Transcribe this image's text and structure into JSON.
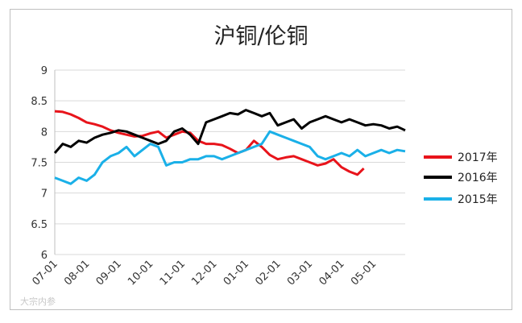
{
  "chart_data": {
    "type": "line",
    "title": "沪铜/伦铜",
    "xlabel": "",
    "ylabel": "",
    "ylim": [
      6,
      9
    ],
    "yticks": [
      "9",
      "8.5",
      "8",
      "7.5",
      "7",
      "6.5",
      "6"
    ],
    "xticks": [
      "07-01",
      "08-01",
      "09-01",
      "10-01",
      "11-01",
      "12-01",
      "01-01",
      "02-01",
      "03-01",
      "04-01",
      "05-01"
    ],
    "x_range_months": [
      0,
      11
    ],
    "grid": "horizontal",
    "legend_position": "right",
    "series": [
      {
        "name": "2017年",
        "color": "#e8141b",
        "x": [
          0.0,
          0.25,
          0.5,
          0.75,
          1.0,
          1.25,
          1.5,
          1.75,
          2.0,
          2.25,
          2.5,
          2.75,
          3.0,
          3.25,
          3.5,
          3.75,
          4.0,
          4.25,
          4.5,
          4.75,
          5.0,
          5.25,
          5.5,
          5.75,
          6.0,
          6.25,
          6.5,
          6.75,
          7.0,
          7.25,
          7.5,
          7.75,
          8.0,
          8.25,
          8.5,
          8.75,
          9.0,
          9.25,
          9.5,
          9.7
        ],
        "y": [
          8.33,
          8.32,
          8.28,
          8.22,
          8.15,
          8.12,
          8.08,
          8.02,
          7.98,
          7.95,
          7.92,
          7.93,
          7.97,
          8.0,
          7.9,
          7.95,
          8.0,
          7.98,
          7.85,
          7.8,
          7.8,
          7.78,
          7.72,
          7.65,
          7.7,
          7.85,
          7.75,
          7.62,
          7.55,
          7.58,
          7.6,
          7.55,
          7.5,
          7.45,
          7.48,
          7.55,
          7.42,
          7.35,
          7.3,
          7.4
        ]
      },
      {
        "name": "2016年",
        "color": "#000000",
        "x": [
          0.0,
          0.25,
          0.5,
          0.75,
          1.0,
          1.25,
          1.5,
          1.75,
          2.0,
          2.25,
          2.5,
          2.75,
          3.0,
          3.25,
          3.5,
          3.75,
          4.0,
          4.25,
          4.5,
          4.75,
          5.0,
          5.25,
          5.5,
          5.75,
          6.0,
          6.25,
          6.5,
          6.75,
          7.0,
          7.25,
          7.5,
          7.75,
          8.0,
          8.25,
          8.5,
          8.75,
          9.0,
          9.25,
          9.5,
          9.75,
          10.0,
          10.25,
          10.5,
          10.75,
          11.0
        ],
        "y": [
          7.65,
          7.8,
          7.75,
          7.85,
          7.82,
          7.9,
          7.95,
          7.98,
          8.02,
          8.0,
          7.95,
          7.9,
          7.85,
          7.8,
          7.85,
          8.0,
          8.05,
          7.95,
          7.8,
          8.15,
          8.2,
          8.25,
          8.3,
          8.28,
          8.35,
          8.3,
          8.25,
          8.3,
          8.1,
          8.15,
          8.2,
          8.05,
          8.15,
          8.2,
          8.25,
          8.2,
          8.15,
          8.2,
          8.15,
          8.1,
          8.12,
          8.1,
          8.05,
          8.08,
          8.02
        ]
      },
      {
        "name": "2015年",
        "color": "#1ab0e8",
        "x": [
          0.0,
          0.25,
          0.5,
          0.75,
          1.0,
          1.25,
          1.5,
          1.75,
          2.0,
          2.25,
          2.5,
          2.75,
          3.0,
          3.25,
          3.5,
          3.75,
          4.0,
          4.25,
          4.5,
          4.75,
          5.0,
          5.25,
          5.5,
          5.75,
          6.0,
          6.25,
          6.5,
          6.75,
          7.0,
          7.25,
          7.5,
          7.75,
          8.0,
          8.25,
          8.5,
          8.75,
          9.0,
          9.25,
          9.5,
          9.75,
          10.0,
          10.25,
          10.5,
          10.75,
          11.0
        ],
        "y": [
          7.25,
          7.2,
          7.15,
          7.25,
          7.2,
          7.3,
          7.5,
          7.6,
          7.65,
          7.75,
          7.6,
          7.7,
          7.8,
          7.75,
          7.45,
          7.5,
          7.5,
          7.55,
          7.55,
          7.6,
          7.6,
          7.55,
          7.6,
          7.65,
          7.7,
          7.75,
          7.8,
          8.0,
          7.95,
          7.9,
          7.85,
          7.8,
          7.75,
          7.6,
          7.55,
          7.6,
          7.65,
          7.6,
          7.7,
          7.6,
          7.65,
          7.7,
          7.65,
          7.7,
          7.68
        ]
      }
    ]
  },
  "watermark": "大宗内参"
}
